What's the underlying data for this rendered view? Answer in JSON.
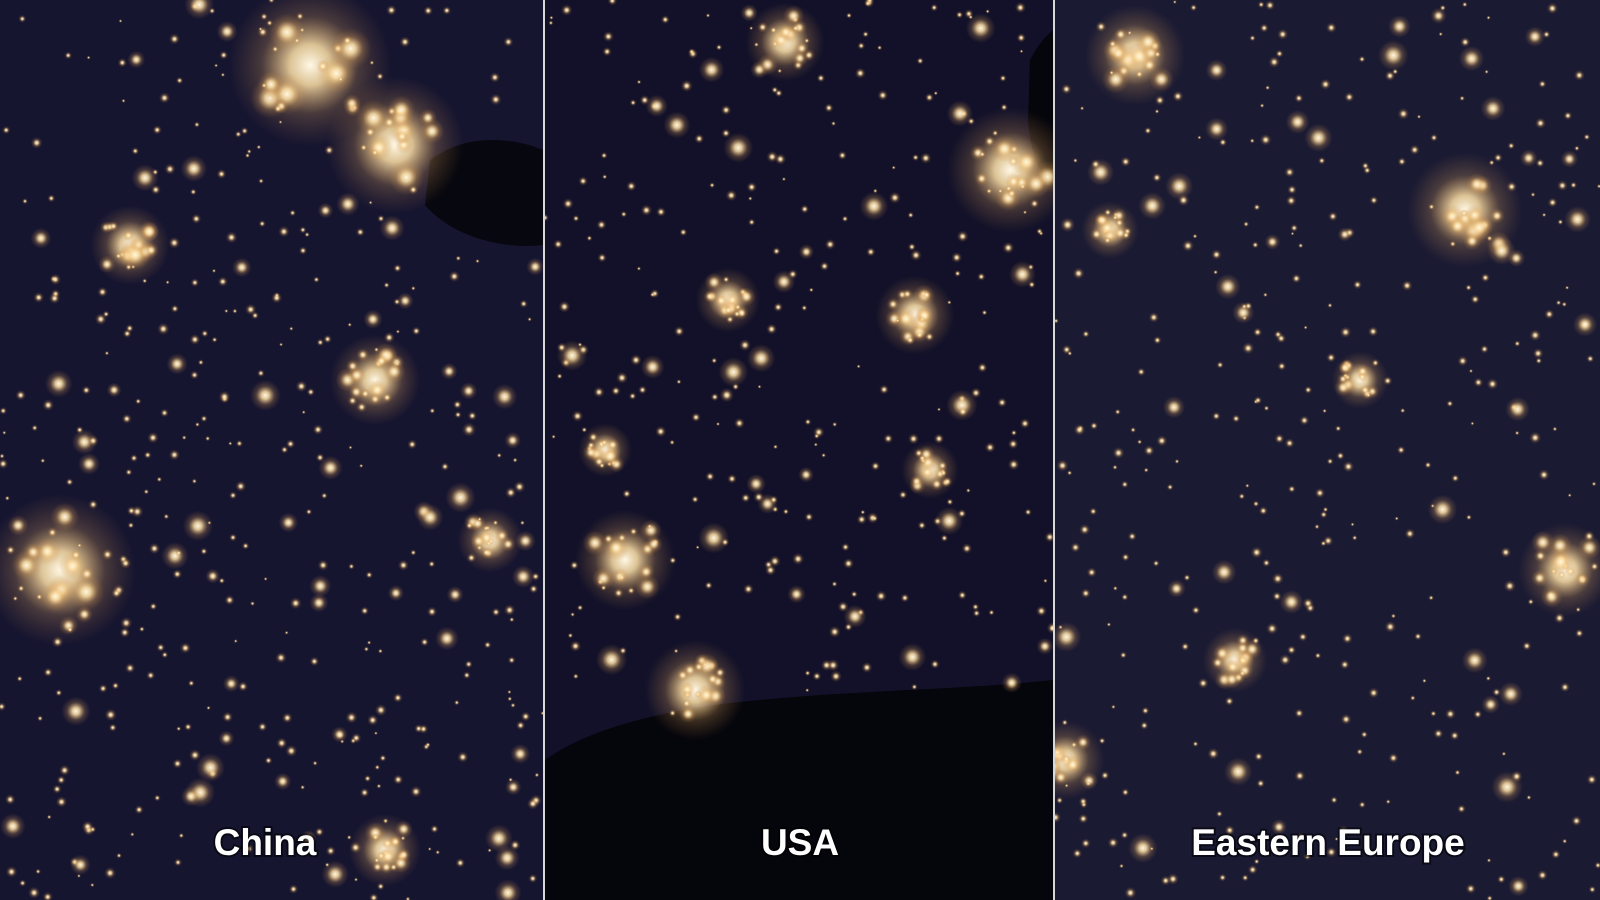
{
  "panels": [
    {
      "label": "China"
    },
    {
      "label": "USA"
    },
    {
      "label": "Eastern Europe"
    }
  ]
}
